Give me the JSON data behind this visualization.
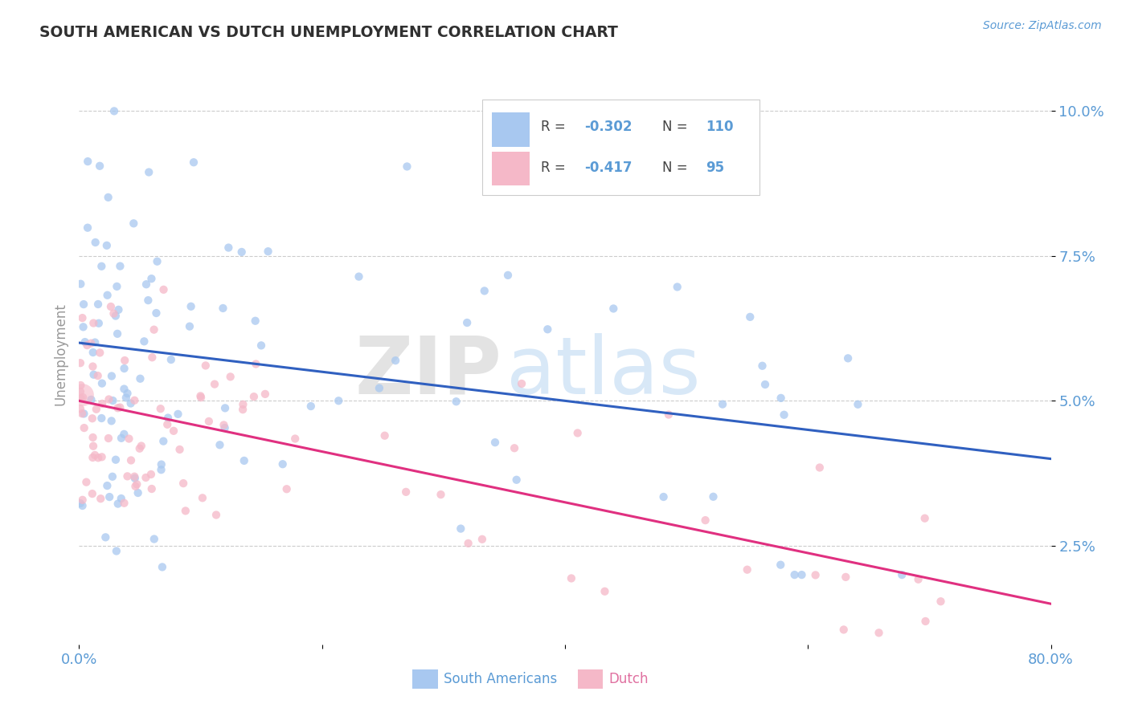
{
  "title": "SOUTH AMERICAN VS DUTCH UNEMPLOYMENT CORRELATION CHART",
  "source_text": "Source: ZipAtlas.com",
  "ylabel": "Unemployment",
  "yticks": [
    0.025,
    0.05,
    0.075,
    0.1
  ],
  "ytick_labels": [
    "2.5%",
    "5.0%",
    "7.5%",
    "10.0%"
  ],
  "xlim": [
    0.0,
    0.8
  ],
  "ylim": [
    0.008,
    0.108
  ],
  "legend_south_americans": "South Americans",
  "legend_dutch": "Dutch",
  "r_south": -0.302,
  "n_south": 110,
  "r_dutch": -0.417,
  "n_dutch": 95,
  "blue_color": "#A8C8F0",
  "pink_color": "#F5B8C8",
  "blue_line_color": "#3060C0",
  "pink_line_color": "#E03080",
  "title_color": "#303030",
  "axis_label_color": "#5B9BD5",
  "grid_color": "#CCCCCC",
  "background_color": "#FFFFFF",
  "blue_line_y0": 0.06,
  "blue_line_y1": 0.04,
  "pink_line_y0": 0.05,
  "pink_line_y1": 0.015
}
